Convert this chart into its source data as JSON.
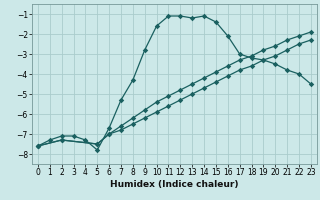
{
  "xlabel": "Humidex (Indice chaleur)",
  "bg_color": "#cce8e8",
  "grid_color": "#aacccc",
  "line_color": "#1a6060",
  "xlim": [
    -0.5,
    23.5
  ],
  "ylim": [
    -8.5,
    -0.5
  ],
  "xticks": [
    0,
    1,
    2,
    3,
    4,
    5,
    6,
    7,
    8,
    9,
    10,
    11,
    12,
    13,
    14,
    15,
    16,
    17,
    18,
    19,
    20,
    21,
    22,
    23
  ],
  "yticks": [
    -8,
    -7,
    -6,
    -5,
    -4,
    -3,
    -2,
    -1
  ],
  "line1_x": [
    0,
    1,
    2,
    3,
    4,
    5,
    6,
    7,
    8,
    9,
    10,
    11,
    12,
    13,
    14,
    15,
    16,
    17,
    18,
    19,
    20,
    21,
    22,
    23
  ],
  "line1_y": [
    -7.6,
    -7.3,
    -7.1,
    -7.1,
    -7.3,
    -7.8,
    -6.7,
    -5.3,
    -4.3,
    -2.8,
    -1.6,
    -1.1,
    -1.1,
    -1.2,
    -1.1,
    -1.4,
    -2.1,
    -3.0,
    -3.2,
    -3.3,
    -3.5,
    -3.8,
    -4.0,
    -4.5
  ],
  "line2_x": [
    0,
    2,
    5,
    6,
    7,
    8,
    9,
    10,
    11,
    12,
    13,
    14,
    15,
    16,
    17,
    18,
    19,
    20,
    21,
    22,
    23
  ],
  "line2_y": [
    -7.6,
    -7.3,
    -7.5,
    -7.0,
    -6.6,
    -6.2,
    -5.8,
    -5.4,
    -5.1,
    -4.8,
    -4.5,
    -4.2,
    -3.9,
    -3.6,
    -3.3,
    -3.1,
    -2.8,
    -2.6,
    -2.3,
    -2.1,
    -1.9
  ],
  "line3_x": [
    0,
    2,
    5,
    6,
    7,
    8,
    9,
    10,
    11,
    12,
    13,
    14,
    15,
    16,
    17,
    18,
    19,
    20,
    21,
    22,
    23
  ],
  "line3_y": [
    -7.6,
    -7.3,
    -7.5,
    -7.0,
    -6.8,
    -6.5,
    -6.2,
    -5.9,
    -5.6,
    -5.3,
    -5.0,
    -4.7,
    -4.4,
    -4.1,
    -3.8,
    -3.6,
    -3.3,
    -3.1,
    -2.8,
    -2.5,
    -2.3
  ]
}
